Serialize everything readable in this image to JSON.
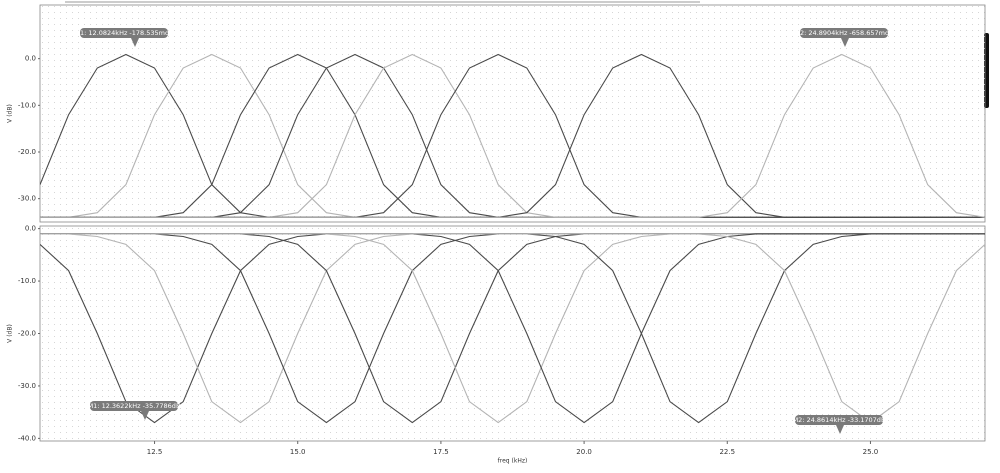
{
  "chart_data": [
    {
      "type": "line",
      "y_label": "V (dB)",
      "x": [
        10.5,
        11,
        11.5,
        12,
        12.5,
        13,
        13.5,
        14,
        14.5,
        15,
        15.5,
        16,
        16.5,
        17,
        17.5,
        18,
        18.5,
        19,
        19.5,
        20,
        20.5,
        21,
        21.5,
        22,
        22.5,
        23,
        23.5,
        24,
        24.5,
        25,
        25.5,
        26,
        26.5,
        27
      ],
      "xlim": [
        10.5,
        27
      ],
      "ylim": [
        -35,
        11.5
      ],
      "yticks": [
        {
          "value": 0,
          "label": "0.0"
        },
        {
          "value": -10,
          "label": "-10.0"
        },
        {
          "value": -20,
          "label": "-20.0"
        },
        {
          "value": -30,
          "label": "-30.0"
        }
      ],
      "grid": true,
      "series": [
        {
          "color": "#4a4a4a",
          "values": [
            -27,
            -12,
            -2,
            0.9,
            -2,
            -12,
            -27,
            -33,
            -34,
            -34,
            -34,
            -34,
            -34,
            -34,
            -34,
            -34,
            -34,
            -34,
            -34,
            -34,
            -34,
            -34,
            -34,
            -34,
            -34,
            -34,
            -34,
            -34,
            -34,
            -34,
            -34,
            -34,
            -34,
            -34
          ]
        },
        {
          "color": "#b4b4b4",
          "values": [
            -34,
            -34,
            -33,
            -27,
            -12,
            -2,
            0.9,
            -2,
            -12,
            -27,
            -33,
            -34,
            -34,
            -34,
            -34,
            -34,
            -34,
            -34,
            -34,
            -34,
            -34,
            -34,
            -34,
            -34,
            -34,
            -34,
            -34,
            -34,
            -34,
            -34,
            -34,
            -34,
            -34,
            -34
          ]
        },
        {
          "color": "#4a4a4a",
          "values": [
            -34,
            -34,
            -34,
            -34,
            -34,
            -33,
            -27,
            -12,
            -2,
            0.9,
            -2,
            -12,
            -27,
            -33,
            -34,
            -34,
            -34,
            -34,
            -34,
            -34,
            -34,
            -34,
            -34,
            -34,
            -34,
            -34,
            -34,
            -34,
            -34,
            -34,
            -34,
            -34,
            -34,
            -34
          ]
        },
        {
          "color": "#4a4a4a",
          "values": [
            -34,
            -34,
            -34,
            -34,
            -34,
            -34,
            -34,
            -33,
            -27,
            -12,
            -2,
            0.9,
            -2,
            -12,
            -27,
            -33,
            -34,
            -34,
            -34,
            -34,
            -34,
            -34,
            -34,
            -34,
            -34,
            -34,
            -34,
            -34,
            -34,
            -34,
            -34,
            -34,
            -34,
            -34
          ]
        },
        {
          "color": "#b4b4b4",
          "values": [
            -34,
            -34,
            -34,
            -34,
            -34,
            -34,
            -34,
            -34,
            -34,
            -33,
            -27,
            -12,
            -2,
            0.9,
            -2,
            -12,
            -27,
            -33,
            -34,
            -34,
            -34,
            -34,
            -34,
            -34,
            -34,
            -34,
            -34,
            -34,
            -34,
            -34,
            -34,
            -34,
            -34,
            -34
          ]
        },
        {
          "color": "#4a4a4a",
          "values": [
            -34,
            -34,
            -34,
            -34,
            -34,
            -34,
            -34,
            -34,
            -34,
            -34,
            -34,
            -34,
            -33,
            -27,
            -12,
            -2,
            0.9,
            -2,
            -12,
            -27,
            -33,
            -34,
            -34,
            -34,
            -34,
            -34,
            -34,
            -34,
            -34,
            -34,
            -34,
            -34,
            -34,
            -34
          ]
        },
        {
          "color": "#4a4a4a",
          "values": [
            -34,
            -34,
            -34,
            -34,
            -34,
            -34,
            -34,
            -34,
            -34,
            -34,
            -34,
            -34,
            -34,
            -34,
            -34,
            -34,
            -34,
            -33,
            -27,
            -12,
            -2,
            0.9,
            -2,
            -12,
            -27,
            -33,
            -34,
            -34,
            -34,
            -34,
            -34,
            -34,
            -34,
            -34
          ]
        },
        {
          "color": "#b4b4b4",
          "values": [
            -34,
            -34,
            -34,
            -34,
            -34,
            -34,
            -34,
            -34,
            -34,
            -34,
            -34,
            -34,
            -34,
            -34,
            -34,
            -34,
            -34,
            -34,
            -34,
            -34,
            -34,
            -34,
            -34,
            -34,
            -33,
            -27,
            -12,
            -2,
            0.9,
            -2,
            -12,
            -27,
            -33,
            -34
          ]
        }
      ],
      "annotations": [
        "M1: 12.0824kHz -178.535mdB",
        "M2: 24.8904kHz -658.657mdB"
      ]
    },
    {
      "type": "line",
      "y_label": "V (dB)",
      "x_label": "freq (kHz)",
      "x": [
        10.5,
        11,
        11.5,
        12,
        12.5,
        13,
        13.5,
        14,
        14.5,
        15,
        15.5,
        16,
        16.5,
        17,
        17.5,
        18,
        18.5,
        19,
        19.5,
        20,
        20.5,
        21,
        21.5,
        22,
        22.5,
        23,
        23.5,
        24,
        24.5,
        25,
        25.5,
        26,
        26.5,
        27
      ],
      "xlim": [
        10.5,
        27
      ],
      "ylim": [
        -40.5,
        0.5
      ],
      "xticks": [
        12.5,
        {
          "value": 15,
          "label": "15.0"
        },
        17.5,
        {
          "value": 20,
          "label": "20.0"
        },
        22.5,
        {
          "value": 25,
          "label": "25.0"
        }
      ],
      "yticks": [
        {
          "value": 0,
          "label": "0.0"
        },
        {
          "value": -10,
          "label": "-10.0"
        },
        {
          "value": -20,
          "label": "-20.0"
        },
        {
          "value": -30,
          "label": "-30.0"
        },
        {
          "value": -40,
          "label": "-40.0"
        }
      ],
      "grid": true,
      "series": [
        {
          "color": "#4a4a4a",
          "values": [
            -3,
            -8,
            -20,
            -33,
            -37,
            -33,
            -20,
            -8,
            -3,
            -1.5,
            -1,
            -1,
            -1,
            -1,
            -1,
            -1,
            -1,
            -1,
            -1,
            -1,
            -1,
            -1,
            -1,
            -1,
            -1,
            -1,
            -1,
            -1,
            -1,
            -1,
            -1,
            -1,
            -1,
            -1
          ]
        },
        {
          "color": "#b4b4b4",
          "values": [
            -1,
            -1,
            -1.5,
            -3,
            -8,
            -20,
            -33,
            -37,
            -33,
            -20,
            -8,
            -3,
            -1.5,
            -1,
            -1,
            -1,
            -1,
            -1,
            -1,
            -1,
            -1,
            -1,
            -1,
            -1,
            -1,
            -1,
            -1,
            -1,
            -1,
            -1,
            -1,
            -1,
            -1,
            -1
          ]
        },
        {
          "color": "#4a4a4a",
          "values": [
            -1,
            -1,
            -1,
            -1,
            -1,
            -1.5,
            -3,
            -8,
            -20,
            -33,
            -37,
            -33,
            -20,
            -8,
            -3,
            -1.5,
            -1,
            -1,
            -1,
            -1,
            -1,
            -1,
            -1,
            -1,
            -1,
            -1,
            -1,
            -1,
            -1,
            -1,
            -1,
            -1,
            -1,
            -1
          ]
        },
        {
          "color": "#4a4a4a",
          "values": [
            -1,
            -1,
            -1,
            -1,
            -1,
            -1,
            -1,
            -1,
            -1.5,
            -3,
            -8,
            -20,
            -33,
            -37,
            -33,
            -20,
            -8,
            -3,
            -1.5,
            -1,
            -1,
            -1,
            -1,
            -1,
            -1,
            -1,
            -1,
            -1,
            -1,
            -1,
            -1,
            -1,
            -1,
            -1
          ]
        },
        {
          "color": "#b4b4b4",
          "values": [
            -1,
            -1,
            -1,
            -1,
            -1,
            -1,
            -1,
            -1,
            -1,
            -1,
            -1,
            -1.5,
            -3,
            -8,
            -20,
            -33,
            -37,
            -33,
            -20,
            -8,
            -3,
            -1.5,
            -1,
            -1,
            -1,
            -1,
            -1,
            -1,
            -1,
            -1,
            -1,
            -1,
            -1,
            -1
          ]
        },
        {
          "color": "#4a4a4a",
          "values": [
            -1,
            -1,
            -1,
            -1,
            -1,
            -1,
            -1,
            -1,
            -1,
            -1,
            -1,
            -1,
            -1,
            -1,
            -1.5,
            -3,
            -8,
            -20,
            -33,
            -37,
            -33,
            -20,
            -8,
            -3,
            -1.5,
            -1,
            -1,
            -1,
            -1,
            -1,
            -1,
            -1,
            -1,
            -1
          ]
        },
        {
          "color": "#4a4a4a",
          "values": [
            -1,
            -1,
            -1,
            -1,
            -1,
            -1,
            -1,
            -1,
            -1,
            -1,
            -1,
            -1,
            -1,
            -1,
            -1,
            -1,
            -1,
            -1,
            -1.5,
            -3,
            -8,
            -20,
            -33,
            -37,
            -33,
            -20,
            -8,
            -3,
            -1.5,
            -1,
            -1,
            -1,
            -1,
            -1
          ]
        },
        {
          "color": "#b4b4b4",
          "values": [
            -1,
            -1,
            -1,
            -1,
            -1,
            -1,
            -1,
            -1,
            -1,
            -1,
            -1,
            -1,
            -1,
            -1,
            -1,
            -1,
            -1,
            -1,
            -1,
            -1,
            -1,
            -1,
            -1,
            -1,
            -1.5,
            -3,
            -8,
            -20,
            -33,
            -37,
            -33,
            -20,
            -8,
            -3
          ]
        }
      ],
      "annotations": [
        "M1: 12.3622kHz -35.7786dB",
        "M2: 24.8614kHz -33.1707dB"
      ]
    }
  ]
}
